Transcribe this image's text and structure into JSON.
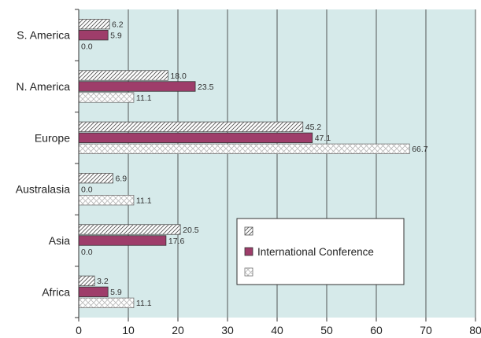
{
  "chart_data": {
    "type": "bar",
    "orientation": "horizontal",
    "categories": [
      "S. America",
      "N. America",
      "Europe",
      "Australasia",
      "Asia",
      "Africa"
    ],
    "series": [
      {
        "name": "",
        "pattern": "diagonal-hatch",
        "values": [
          6.2,
          18.0,
          45.2,
          6.9,
          20.5,
          3.2
        ],
        "labels": [
          "6.2",
          "18.0",
          "45.2",
          "6.9",
          "20.5",
          "3.2"
        ]
      },
      {
        "name": "International Conference",
        "color": "#9e3d6a",
        "values": [
          5.9,
          23.5,
          47.1,
          0.0,
          17.6,
          5.9
        ],
        "labels": [
          "5.9",
          "23.5",
          "47.1",
          "0.0",
          "17.6",
          "5.9"
        ]
      },
      {
        "name": "",
        "pattern": "cross-hatch",
        "values": [
          0.0,
          11.1,
          66.7,
          11.1,
          0.0,
          11.1
        ],
        "labels": [
          "0.0",
          "11.1",
          "66.7",
          "11.1",
          "0.0",
          "11.1"
        ]
      }
    ],
    "xlim": [
      0,
      80
    ],
    "xticks": [
      "0",
      "10",
      "20",
      "30",
      "40",
      "50",
      "60",
      "70",
      "80"
    ],
    "grid": true,
    "plot_background": "#d6eaea",
    "legend_position": "lower-right inside plot",
    "title": "",
    "xlabel": "",
    "ylabel": ""
  }
}
